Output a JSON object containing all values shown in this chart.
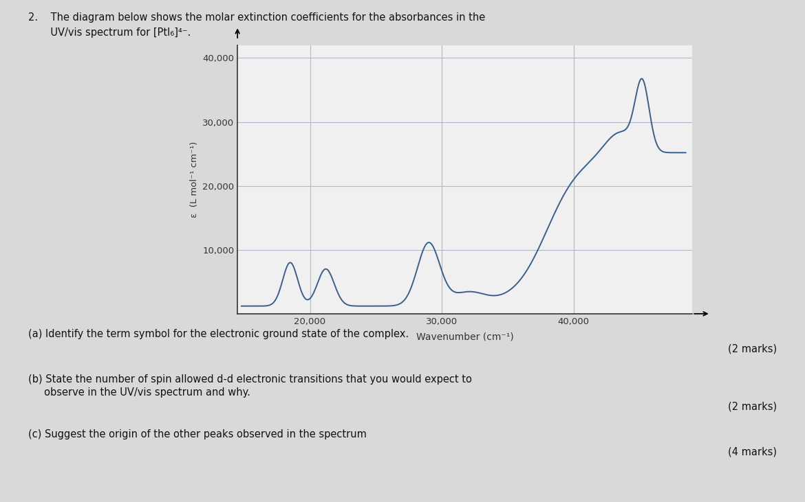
{
  "xlabel": "Wavenumber (cm⁻¹)",
  "ylabel": "ε  (L mol⁻¹ cm⁻¹)",
  "xlim": [
    14500,
    49000
  ],
  "ylim": [
    0,
    42000
  ],
  "xticks": [
    20000,
    30000,
    40000
  ],
  "xtick_labels": [
    "20,000",
    "30,000",
    "40,000"
  ],
  "yticks": [
    10000,
    20000,
    30000,
    40000
  ],
  "ytick_labels": [
    "10,000",
    "20,000",
    "30,000",
    "40,000"
  ],
  "line_color": "#3a5f8a",
  "background_color": "#d9d9d9",
  "plot_bg_color": "#f0f0f0",
  "grid_color": "#b0b8c8",
  "fig_text_color": "#111111",
  "title_line1": "2.    The diagram below shows the molar extinction coefficients for the absorbances in the",
  "title_line2": "       UV/vis spectrum for [PtI₆]⁴⁻.",
  "qa": "(a) Identify the term symbol for the electronic ground state of the complex.",
  "qa_marks": "(2 marks)",
  "qb1": "(b) State the number of spin allowed d-d electronic transitions that you would expect to",
  "qb2": "     observe in the UV/vis spectrum and why.",
  "qb_marks": "(2 marks)",
  "qc": "(c) Suggest the origin of the other peaks observed in the spectrum",
  "qc_marks": "(4 marks)"
}
